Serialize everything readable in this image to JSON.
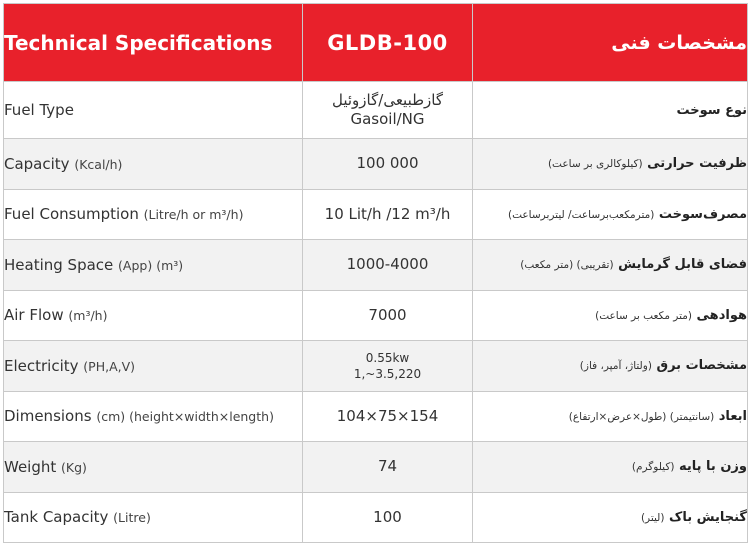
{
  "header": {
    "col_en": "Technical Specifications",
    "col_model": "GLDB-100",
    "col_fa": "مشخصات فنی"
  },
  "rows": [
    {
      "en": "Fuel Type",
      "en_unit": "",
      "value_line1": "گازطبیعی/گازوئیل",
      "value_line2": "Gasoil/NG",
      "fa": "نوع سوخت",
      "fa_unit": ""
    },
    {
      "en": "Capacity",
      "en_unit": "(Kcal/h)",
      "value_line1": "100 000",
      "value_line2": "",
      "fa": "ظرفیت حرارتی",
      "fa_unit": "(کیلوکالری بر ساعت)"
    },
    {
      "en": "Fuel Consumption",
      "en_unit": "(Litre/h or m³/h)",
      "value_line1": "10 Lit/h /12 m³/h",
      "value_line2": "",
      "fa": "مصرف‌سوخت",
      "fa_unit": "(مترمکعب‌برساعت/ لیتربرساعت)"
    },
    {
      "en": "Heating Space",
      "en_unit": "(App) (m³)",
      "value_line1": "1000-4000",
      "value_line2": "",
      "fa": "فضای قابل گرمایش",
      "fa_unit": "(تقریبی) (متر مکعب)"
    },
    {
      "en": "Air Flow",
      "en_unit": "(m³/h)",
      "value_line1": "7000",
      "value_line2": "",
      "fa": "هوادهی",
      "fa_unit": "(متر مکعب بر ساعت)"
    },
    {
      "en": "Electricity",
      "en_unit": "(PH,A,V)",
      "value_line1": "0.55kw",
      "value_line2": "1,~3.5,220",
      "fa": "مشخصات برق",
      "fa_unit": "(ولتاژ، آمپر، فاز)"
    },
    {
      "en": "Dimensions",
      "en_unit": "(cm) (height×width×length)",
      "value_line1": "104×75×154",
      "value_line2": "",
      "fa": "ابعاد",
      "fa_unit": "(سانتیمتر) (طول×عرض×ارتفاع)"
    },
    {
      "en": "Weight",
      "en_unit": "(Kg)",
      "value_line1": "74",
      "value_line2": "",
      "fa": "وزن با پایه",
      "fa_unit": "(کیلوگرم)"
    },
    {
      "en": "Tank Capacity",
      "en_unit": "(Litre)",
      "value_line1": "100",
      "value_line2": "",
      "fa": "گنجایش باک",
      "fa_unit": "(لیتر)"
    }
  ],
  "colors": {
    "header_bg": "#e8212b",
    "header_text": "#ffffff",
    "row_alt_bg": "#f2f2f2",
    "border": "#c9c9c9"
  }
}
